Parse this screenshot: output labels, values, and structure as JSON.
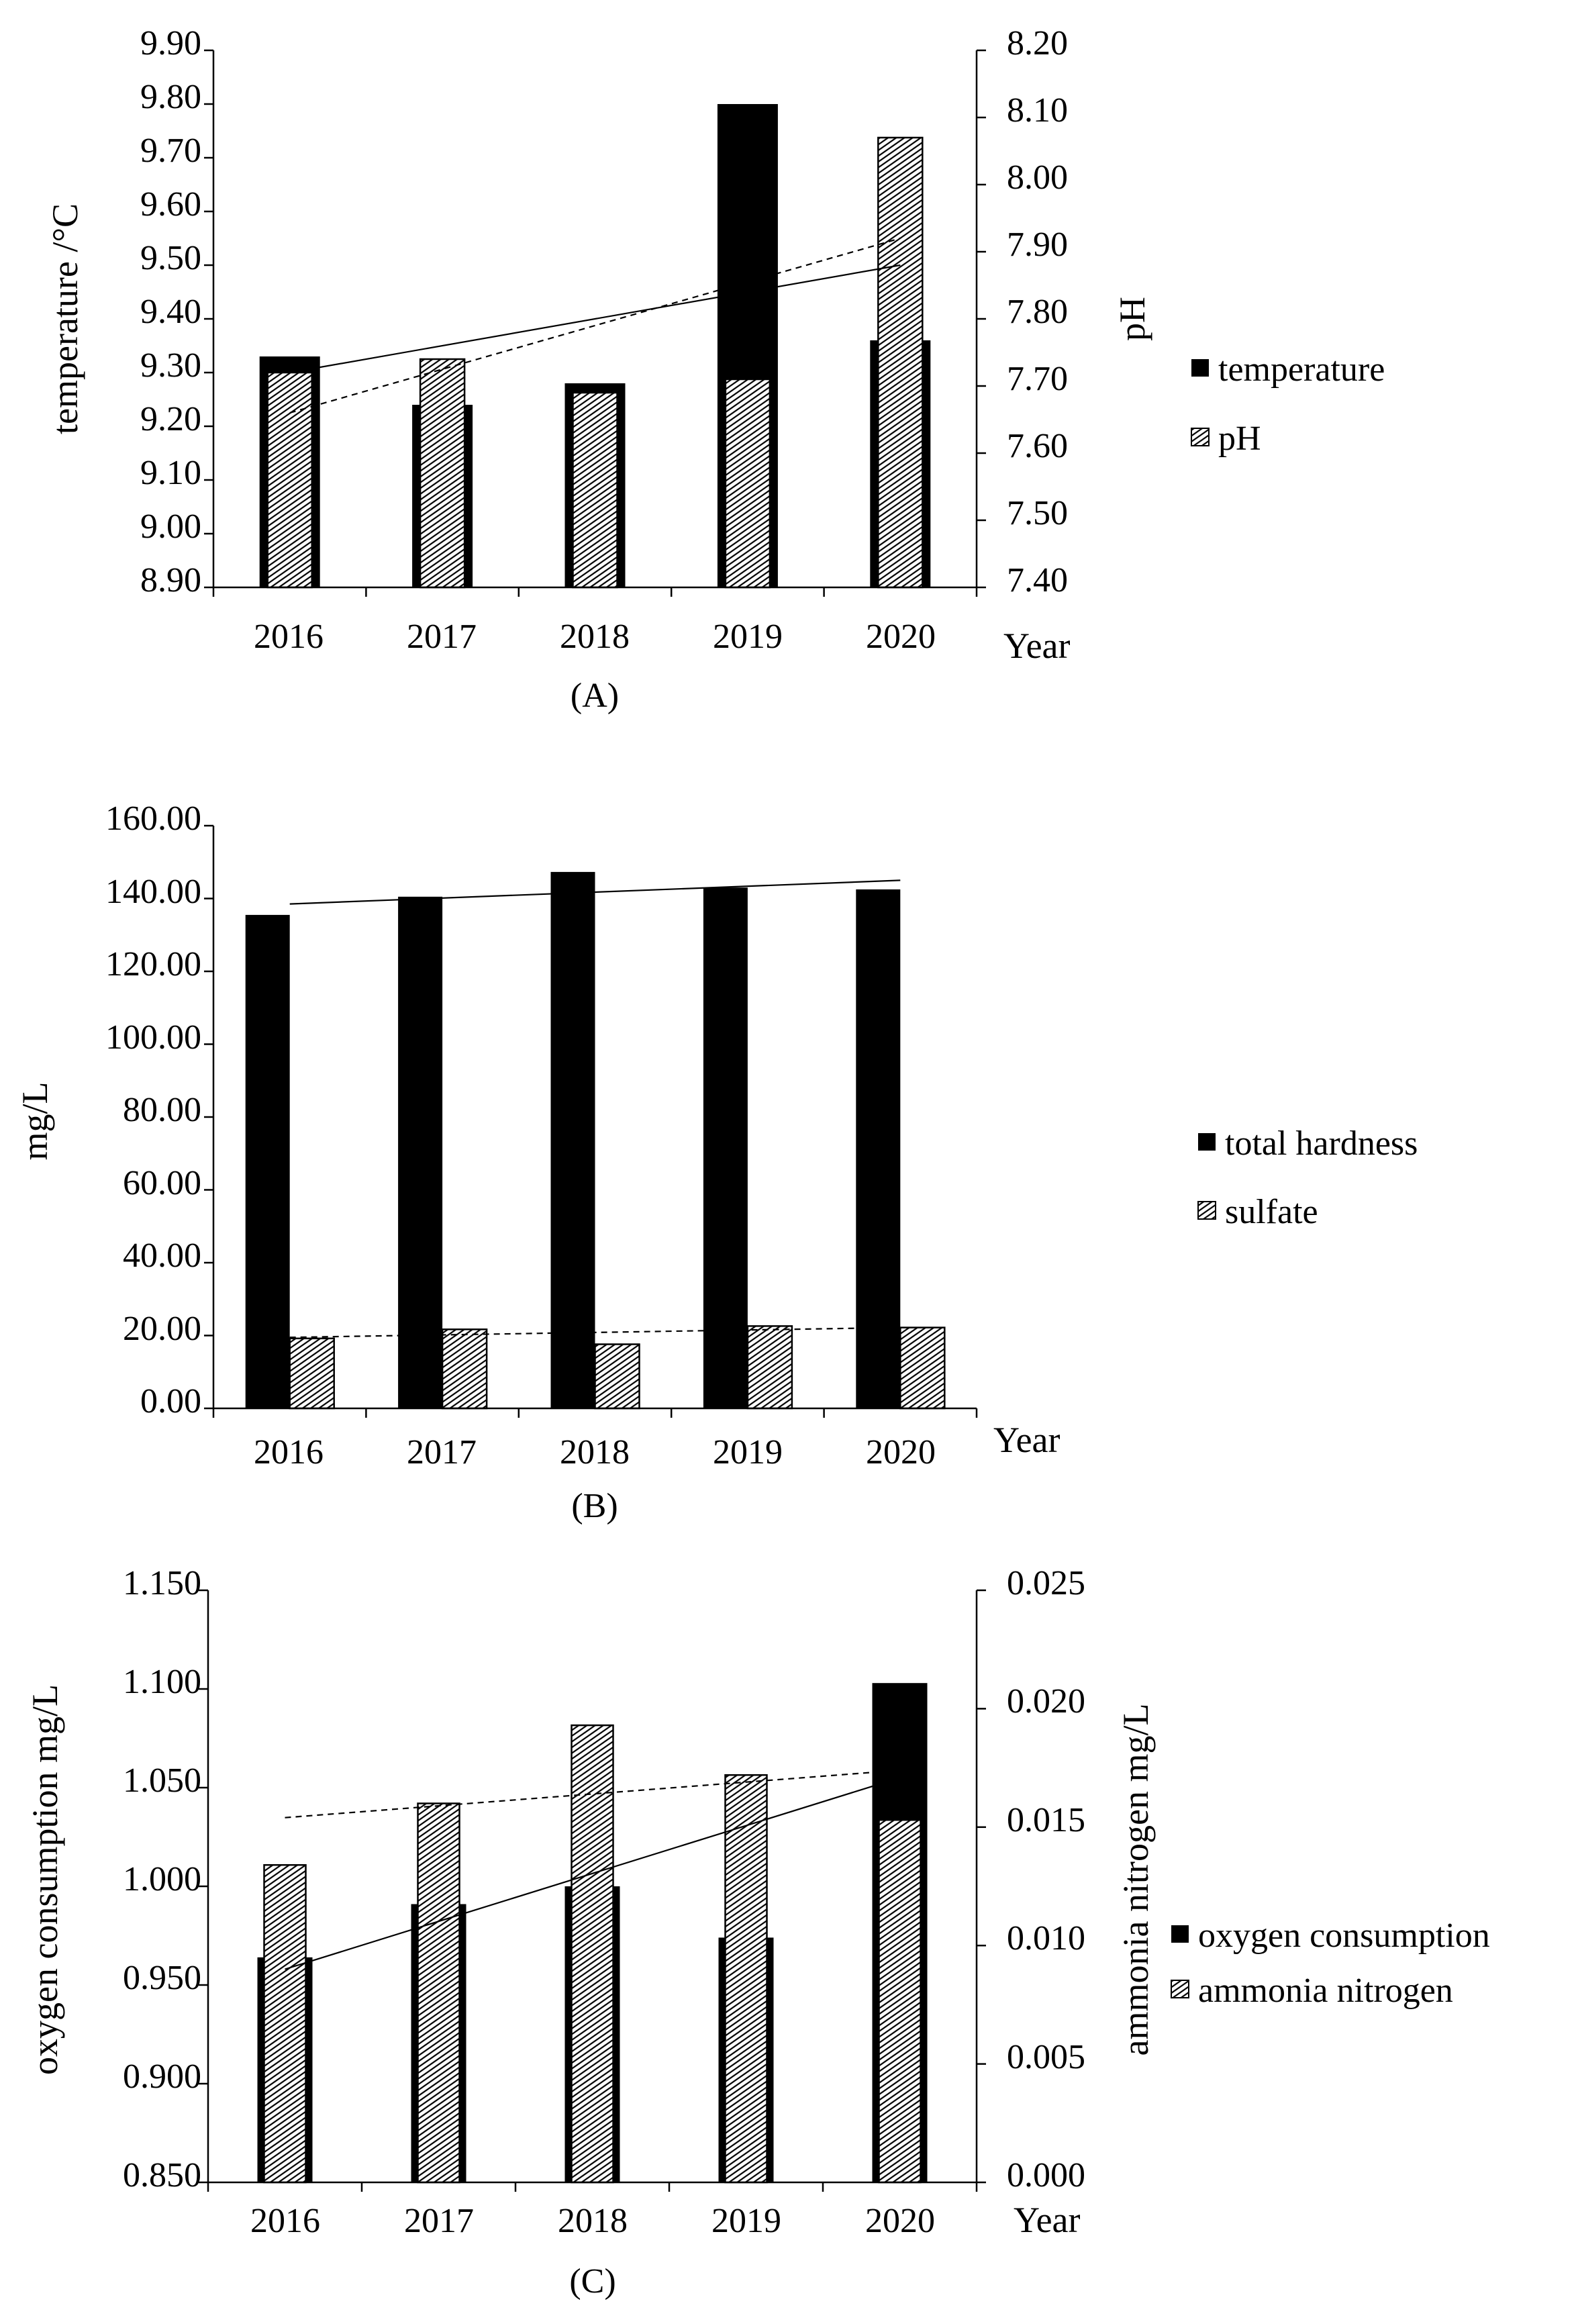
{
  "chart_data": [
    {
      "type": "bar",
      "caption": "(A)",
      "categories": [
        "2016",
        "2017",
        "2018",
        "2019",
        "2020"
      ],
      "xlabel": "Year",
      "ylabel": "temperature /°C",
      "y2label": "pH",
      "ylim": [
        8.9,
        9.9
      ],
      "y2lim": [
        7.4,
        8.2
      ],
      "yticks": [
        "8.90",
        "9.00",
        "9.10",
        "9.20",
        "9.30",
        "9.40",
        "9.50",
        "9.60",
        "9.70",
        "9.80",
        "9.90"
      ],
      "y2ticks": [
        "7.40",
        "7.50",
        "7.60",
        "7.70",
        "7.80",
        "7.90",
        "8.00",
        "8.10",
        "8.20"
      ],
      "series": [
        {
          "name": "temperature",
          "axis": "left",
          "pattern": "solid",
          "values": [
            9.33,
            9.24,
            9.28,
            9.8,
            9.36
          ]
        },
        {
          "name": "pH",
          "axis": "right",
          "pattern": "hatch",
          "values": [
            7.72,
            7.74,
            7.69,
            7.71,
            8.07
          ]
        }
      ],
      "trendlines": [
        {
          "series": "temperature",
          "style": "solid",
          "start": 9.3,
          "end": 9.5
        },
        {
          "series": "pH",
          "style": "dashed",
          "start": 7.66,
          "end": 7.92
        }
      ],
      "legend_position": "right"
    },
    {
      "type": "bar",
      "caption": "(B)",
      "categories": [
        "2016",
        "2017",
        "2018",
        "2019",
        "2020"
      ],
      "xlabel": "Year",
      "ylabel": "mg/L",
      "ylim": [
        0,
        160
      ],
      "yticks": [
        "0.00",
        "20.00",
        "40.00",
        "60.00",
        "80.00",
        "100.00",
        "120.00",
        "140.00",
        "160.00"
      ],
      "series": [
        {
          "name": "total hardness",
          "axis": "left",
          "pattern": "solid",
          "values": [
            135.5,
            140.5,
            147.3,
            143.0,
            142.5
          ]
        },
        {
          "name": "sulfate",
          "axis": "left",
          "pattern": "hatch",
          "values": [
            19.2,
            21.7,
            17.6,
            22.6,
            22.2
          ]
        }
      ],
      "trendlines": [
        {
          "series": "total hardness",
          "style": "solid",
          "start": 138.5,
          "end": 145.0
        },
        {
          "series": "sulfate",
          "style": "dashed",
          "start": 19.5,
          "end": 22.2
        }
      ],
      "legend_position": "right"
    },
    {
      "type": "bar",
      "caption": "(C)",
      "categories": [
        "2016",
        "2017",
        "2018",
        "2019",
        "2020"
      ],
      "xlabel": "Year",
      "ylabel": "oxygen consumption  mg/L",
      "y2label": "ammonia nitrogen  mg/L",
      "ylim": [
        0.85,
        1.15
      ],
      "y2lim": [
        0.0,
        0.025
      ],
      "yticks": [
        "0.850",
        "0.900",
        "0.950",
        "1.000",
        "1.050",
        "1.100",
        "1.150"
      ],
      "y2ticks": [
        "0.000",
        "0.005",
        "0.010",
        "0.015",
        "0.020",
        "0.025"
      ],
      "series": [
        {
          "name": "oxygen consumption",
          "axis": "left",
          "pattern": "solid",
          "values": [
            0.964,
            0.991,
            1.0,
            0.974,
            1.103
          ]
        },
        {
          "name": "ammonia nitrogen",
          "axis": "right",
          "pattern": "hatch",
          "values": [
            0.0134,
            0.016,
            0.0193,
            0.0172,
            0.0153
          ]
        }
      ],
      "trendlines": [
        {
          "series": "oxygen consumption",
          "style": "solid",
          "start": 0.958,
          "end": 1.055
        },
        {
          "series": "ammonia nitrogen",
          "style": "dashed",
          "start": 0.0154,
          "end": 0.0174
        }
      ],
      "legend_position": "right"
    }
  ]
}
